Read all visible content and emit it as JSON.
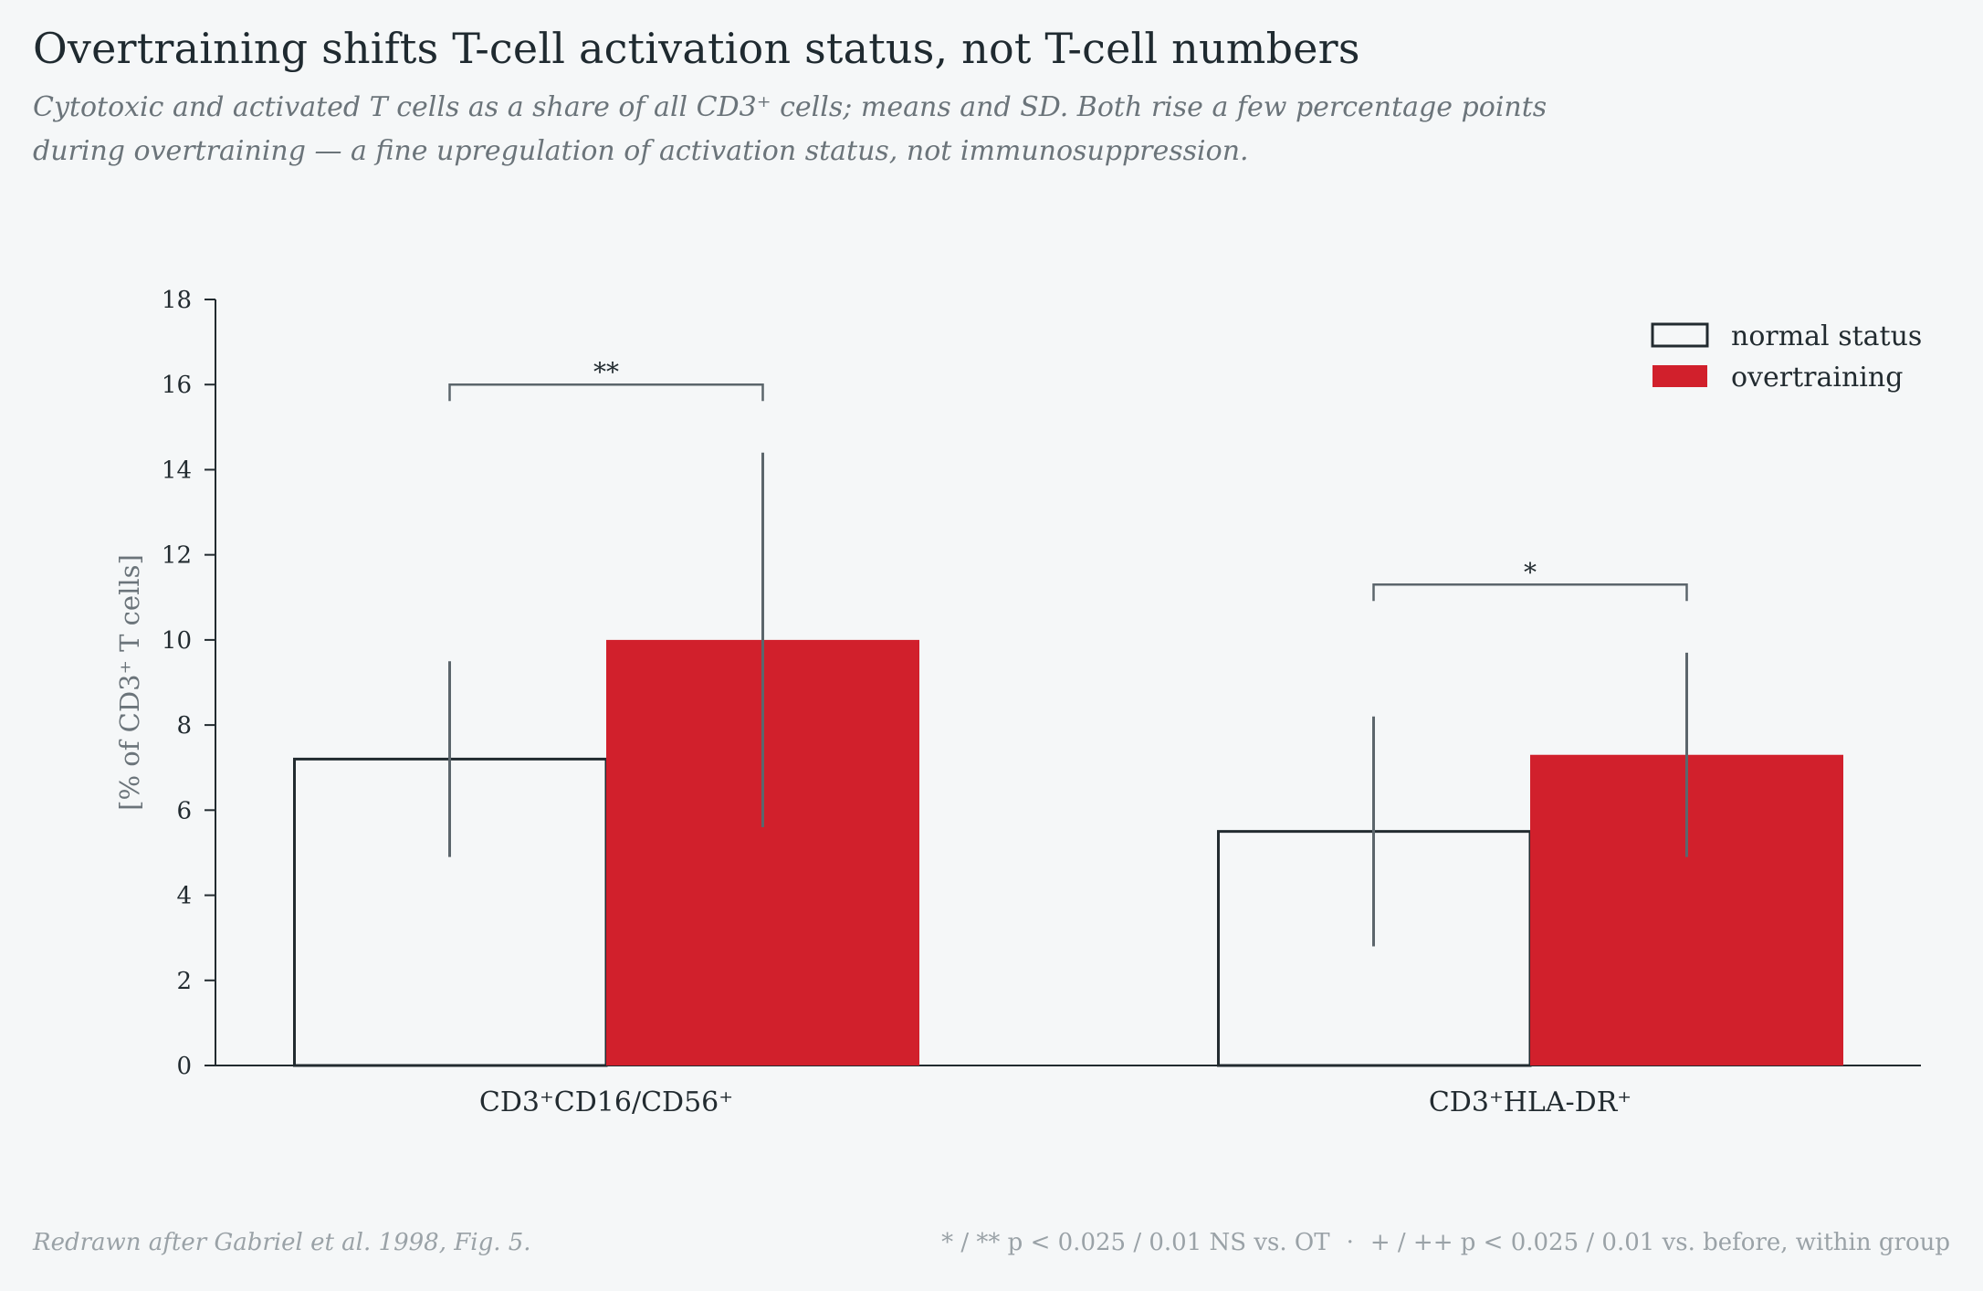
{
  "title": "Overtraining shifts T-cell activation status, not T-cell numbers",
  "subtitle": "Cytotoxic and activated T cells as a share of all CD3⁺ cells; means and SD. Both rise a few percentage points during overtraining — a fine upregulation of activation status, not immunosuppression.",
  "footer": {
    "source": "Redrawn after Gabriel et al. 1998, Fig. 5.",
    "note_ns": "* / ** p < 0.025 / 0.01 NS vs. OT",
    "separator": "·",
    "note_before": "+ / ++ p < 0.025 / 0.01 vs. before, within group"
  },
  "colors": {
    "background": "#f5f7f8",
    "normal_outline": "#222b30",
    "overtraining_fill": "#d1202c",
    "axis": "#222b30",
    "error_bar": "#5c666c",
    "ylabel": "#6b747a"
  },
  "chart_data": {
    "type": "bar",
    "title": "Overtraining shifts T-cell activation status, not T-cell numbers",
    "ylabel": "[% of CD3⁺ T cells]",
    "xlabel": "",
    "ylim": [
      0,
      18
    ],
    "yticks": [
      0,
      2,
      4,
      6,
      8,
      10,
      12,
      14,
      16,
      18
    ],
    "grid": false,
    "legend_position": "top-right",
    "categories": [
      "CD3⁺CD16/CD56⁺",
      "CD3⁺HLA-DR⁺"
    ],
    "series": [
      {
        "name": "normal status",
        "style": "outline",
        "values": [
          7.2,
          5.5
        ],
        "sd": [
          2.3,
          2.7
        ]
      },
      {
        "name": "overtraining",
        "style": "filled",
        "values": [
          10.0,
          7.3
        ],
        "sd": [
          4.4,
          2.4
        ]
      }
    ],
    "significance": [
      {
        "category_index": 0,
        "label": "**",
        "bracket_y": 16.0
      },
      {
        "category_index": 1,
        "label": "*",
        "bracket_y": 11.3
      }
    ]
  }
}
